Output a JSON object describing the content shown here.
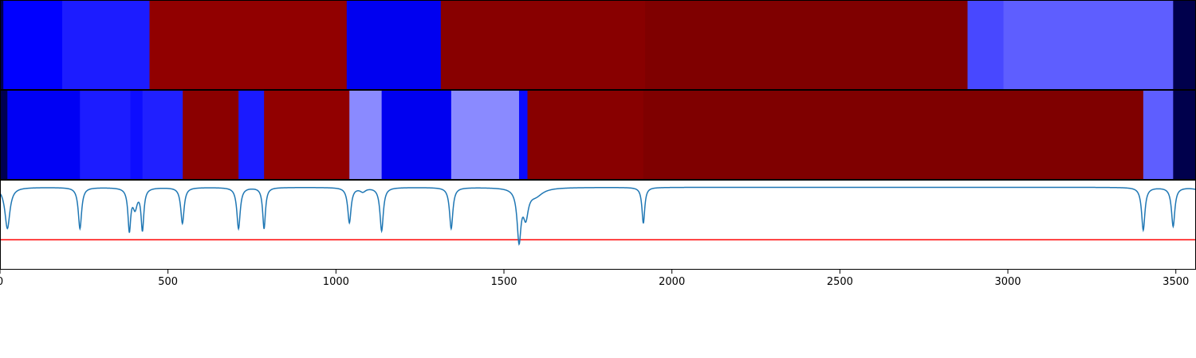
{
  "chart_data": {
    "type": "heatmap",
    "x_range": [
      0,
      3560
    ],
    "x_ticks": [
      "0",
      "500",
      "1000",
      "1500",
      "2000",
      "2500",
      "3000",
      "3500"
    ],
    "tracks": [
      {
        "segments": [
          {
            "start": 0,
            "end": 10,
            "color": "#00004c"
          },
          {
            "start": 10,
            "end": 185,
            "color": "#0000ff"
          },
          {
            "start": 185,
            "end": 445,
            "color": "#1c1cff"
          },
          {
            "start": 445,
            "end": 1032,
            "color": "#910000"
          },
          {
            "start": 1032,
            "end": 1312,
            "color": "#0000f0"
          },
          {
            "start": 1312,
            "end": 1920,
            "color": "#880000"
          },
          {
            "start": 1920,
            "end": 2880,
            "color": "#7f0000"
          },
          {
            "start": 2880,
            "end": 2987,
            "color": "#4848ff"
          },
          {
            "start": 2987,
            "end": 3492,
            "color": "#5e5eff"
          },
          {
            "start": 3492,
            "end": 3560,
            "color": "#00004c"
          }
        ]
      },
      {
        "segments": [
          {
            "start": 0,
            "end": 22,
            "color": "#000050"
          },
          {
            "start": 22,
            "end": 238,
            "color": "#0000f4"
          },
          {
            "start": 238,
            "end": 388,
            "color": "#1c1cff"
          },
          {
            "start": 388,
            "end": 424,
            "color": "#0d0dff"
          },
          {
            "start": 424,
            "end": 544,
            "color": "#2020ff"
          },
          {
            "start": 544,
            "end": 710,
            "color": "#8b0000"
          },
          {
            "start": 710,
            "end": 786,
            "color": "#1a1aff"
          },
          {
            "start": 786,
            "end": 1040,
            "color": "#910000"
          },
          {
            "start": 1040,
            "end": 1136,
            "color": "#8a8aff"
          },
          {
            "start": 1136,
            "end": 1343,
            "color": "#0000f0"
          },
          {
            "start": 1343,
            "end": 1545,
            "color": "#8a8aff"
          },
          {
            "start": 1545,
            "end": 1570,
            "color": "#0a0aff"
          },
          {
            "start": 1570,
            "end": 1915,
            "color": "#880000"
          },
          {
            "start": 1915,
            "end": 3403,
            "color": "#7f0000"
          },
          {
            "start": 3403,
            "end": 3492,
            "color": "#5e5eff"
          },
          {
            "start": 3492,
            "end": 3560,
            "color": "#00004c"
          }
        ]
      }
    ],
    "line_panel": {
      "y_range": [
        -1.1,
        0.1
      ],
      "baseline": -0.7,
      "baseline_color": "#ff0000",
      "line_color": "#1f77b4",
      "dips": [
        {
          "x": 22,
          "depth": 0.55,
          "width": 9
        },
        {
          "x": 238,
          "depth": 0.55,
          "width": 6
        },
        {
          "x": 385,
          "depth": 0.55,
          "width": 5
        },
        {
          "x": 402,
          "depth": 0.25,
          "width": 8
        },
        {
          "x": 424,
          "depth": 0.55,
          "width": 5
        },
        {
          "x": 543,
          "depth": 0.48,
          "width": 6
        },
        {
          "x": 710,
          "depth": 0.55,
          "width": 6
        },
        {
          "x": 786,
          "depth": 0.55,
          "width": 5
        },
        {
          "x": 1040,
          "depth": 0.47,
          "width": 6
        },
        {
          "x": 1080,
          "depth": 0.05,
          "width": 10
        },
        {
          "x": 1136,
          "depth": 0.58,
          "width": 6
        },
        {
          "x": 1343,
          "depth": 0.55,
          "width": 6
        },
        {
          "x": 1545,
          "depth": 0.68,
          "width": 7
        },
        {
          "x": 1565,
          "depth": 0.35,
          "width": 9
        },
        {
          "x": 1595,
          "depth": 0.1,
          "width": 25
        },
        {
          "x": 1915,
          "depth": 0.48,
          "width": 5
        },
        {
          "x": 3403,
          "depth": 0.57,
          "width": 6
        },
        {
          "x": 3492,
          "depth": 0.52,
          "width": 6
        },
        {
          "x": 3570,
          "depth": 0.03,
          "width": 20
        }
      ]
    }
  }
}
